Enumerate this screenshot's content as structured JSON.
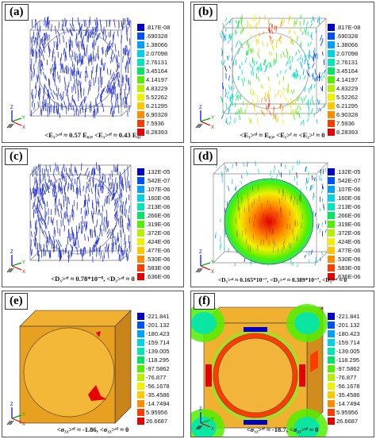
{
  "panels": {
    "a": {
      "label": "(a)",
      "caption": "<E₃>ᵉᶠ ≈ 0.57 E₀₃, <E₃>ᵉᶠ ≈ 0.43 E₀₃",
      "legend": [
        ".817E-08",
        ".690328",
        "1.38066",
        "2.07098",
        "2.76131",
        "3.45164",
        "4.14197",
        "4.83229",
        "5.52262",
        "6.21295",
        "6.90328",
        "7.5936",
        "8.28393"
      ]
    },
    "b": {
      "label": "(b)",
      "caption": "<E₃>ᵉᶠ ≈ E₀₃, <E₁>ᶠ ≈ <E₂>ᶠ ≈ 0",
      "legend": [
        ".817E-08",
        ".690328",
        "1.38066",
        "2.07098",
        "2.76131",
        "3.45164",
        "4.14197",
        "4.83229",
        "5.52262",
        "6.21295",
        "6.90328",
        "7.5936",
        "8.28393"
      ]
    },
    "c": {
      "label": "(c)",
      "caption": "<D₃>ᵉᶠ ≈ 0.78*10⁻⁸, <D₃>ᵉᶠ ≈ 0",
      "legend": [
        ".132E-05",
        ".542E-07",
        ".107E-06",
        ".160E-06",
        ".213E-06",
        ".266E-06",
        ".319E-06",
        ".372E-06",
        ".424E-06",
        ".477E-06",
        ".530E-06",
        ".583E-06",
        ".636E-06"
      ]
    },
    "d": {
      "label": "(d)",
      "caption": "<D₃>ᵉᶠ ≈ 0.165*10⁻⁷, <D₃>ᵉᶠ ≈ 0.389*10⁻⁷, <D₃>ᵉᶠ ≈ 0",
      "legend": [
        ".132E-05",
        ".542E-07",
        ".107E-06",
        ".160E-06",
        ".213E-06",
        ".266E-06",
        ".319E-06",
        ".372E-06",
        ".424E-06",
        ".477E-06",
        ".530E-06",
        ".583E-06",
        ".636E-06"
      ]
    },
    "e": {
      "label": "(e)",
      "caption": "<σ₃₃>ᵉᶠ ≈ -1.86, <σ₃₃>ᵉᶠ ≈ 0",
      "legend": [
        "-221.841",
        "-201.132",
        "-180.423",
        "-159.714",
        "-139.005",
        "-118.295",
        "-97.5862",
        "-76.877",
        "-56.1678",
        "-35.4586",
        "-14.7494",
        "5.95956",
        "26.6687"
      ]
    },
    "f": {
      "label": "(f)",
      "caption": "<σ₃₃>ᵉᶠ ≈ -18.7, <σ₃₃>ᵉᶠ ≈ 0",
      "legend": [
        "-221.841",
        "-201.132",
        "-180.423",
        "-159.714",
        "-139.005",
        "-118.295",
        "-97.5862",
        "-76.877",
        "-56.1678",
        "-35.4586",
        "-14.7494",
        "5.95956",
        "26.6687"
      ]
    }
  },
  "colors": {
    "legend_scale": [
      "#0000c8",
      "#0050ff",
      "#00a0ff",
      "#00d2e6",
      "#00e6b4",
      "#00e664",
      "#50f000",
      "#b4f000",
      "#f0f000",
      "#ffc800",
      "#ff8c00",
      "#ff3c00",
      "#e60000"
    ],
    "vector_blue": "#2232d8",
    "box_orange": "#e8a020",
    "triad_x": "#e00000",
    "triad_y": "#00a000",
    "triad_z": "#0000e0"
  },
  "triad_labels": {
    "x": "X",
    "y": "Y",
    "z": "Z"
  }
}
